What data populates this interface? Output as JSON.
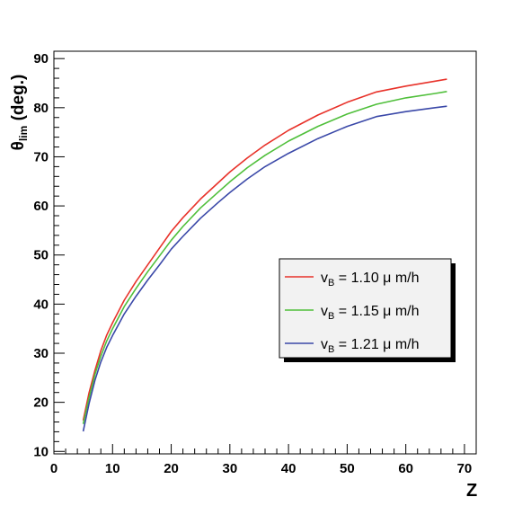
{
  "chart_data": {
    "type": "line",
    "title": "",
    "xlabel": "Z",
    "ylabel": "θ",
    "ylabel_sub": "lim",
    "ylabel_unit": " (deg.)",
    "xlim": [
      0,
      72
    ],
    "ylim": [
      9.5,
      91.5
    ],
    "x_ticks": [
      0,
      10,
      20,
      30,
      40,
      50,
      60,
      70
    ],
    "y_ticks": [
      10,
      20,
      30,
      40,
      50,
      60,
      70,
      80,
      90
    ],
    "grid": false,
    "legend_position": "center-right",
    "series": [
      {
        "name_main": "v",
        "name_sub": "B",
        "name_rest": " = 1.10 μ m/h",
        "color": "#e8322a",
        "x": [
          5,
          6,
          7,
          8,
          9,
          10,
          12,
          14,
          16,
          18,
          20,
          22,
          25,
          28,
          30,
          33,
          36,
          40,
          45,
          50,
          55,
          60,
          65,
          67
        ],
        "y": [
          16.3,
          22.0,
          26.5,
          30.5,
          33.7,
          36.2,
          40.8,
          44.6,
          48.0,
          51.4,
          54.8,
          57.6,
          61.4,
          64.7,
          66.9,
          69.8,
          72.4,
          75.4,
          78.5,
          81.1,
          83.2,
          84.4,
          85.4,
          85.8
        ]
      },
      {
        "name_main": "v",
        "name_sub": "B",
        "name_rest": " = 1.15 μ m/h",
        "color": "#4fbf3a",
        "x": [
          5,
          6,
          7,
          8,
          9,
          10,
          12,
          14,
          16,
          18,
          20,
          22,
          25,
          28,
          30,
          33,
          36,
          40,
          45,
          50,
          55,
          60,
          65,
          67
        ],
        "y": [
          15.6,
          21.0,
          25.7,
          29.4,
          32.5,
          35.0,
          39.5,
          43.2,
          46.6,
          49.8,
          53.0,
          55.8,
          59.6,
          62.8,
          64.9,
          67.8,
          70.3,
          73.2,
          76.2,
          78.7,
          80.7,
          82.0,
          82.9,
          83.3
        ]
      },
      {
        "name_main": "v",
        "name_sub": "B",
        "name_rest": " = 1.21 μ m/h",
        "color": "#3a48a8",
        "x": [
          5,
          6,
          7,
          8,
          9,
          10,
          12,
          14,
          16,
          18,
          20,
          22,
          25,
          28,
          30,
          33,
          36,
          40,
          45,
          50,
          55,
          60,
          65,
          67
        ],
        "y": [
          14.1,
          19.8,
          24.5,
          28.2,
          31.2,
          33.6,
          38.0,
          41.6,
          44.9,
          48.0,
          51.2,
          53.8,
          57.5,
          60.7,
          62.7,
          65.5,
          68.0,
          70.7,
          73.7,
          76.2,
          78.2,
          79.2,
          80.0,
          80.3
        ]
      }
    ]
  }
}
